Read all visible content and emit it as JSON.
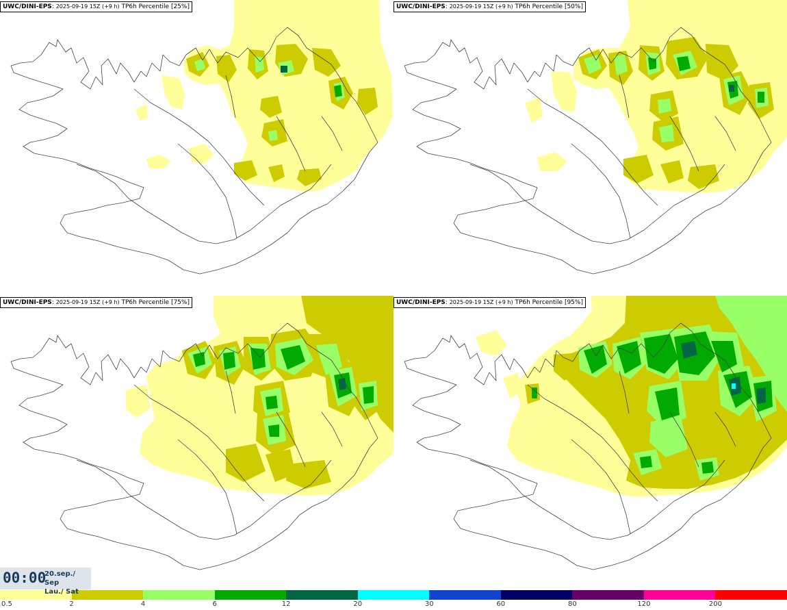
{
  "panels": [
    {
      "model": "UWC/DINI-EPS",
      "run": "2025-09-19 15Z (+9 h)",
      "field": "TP6h Percentile [25%]",
      "percentile": 25
    },
    {
      "model": "UWC/DINI-EPS",
      "run": "2025-09-19 15Z (+9 h)",
      "field": "TP6h Percentile [50%]",
      "percentile": 50
    },
    {
      "model": "UWC/DINI-EPS",
      "run": "2025-09-19 15Z (+9 h)",
      "field": "TP6h Percentile [75%]",
      "percentile": 75
    },
    {
      "model": "UWC/DINI-EPS",
      "run": "2025-09-19 15Z (+9 h)",
      "field": "TP6h Percentile [95%]",
      "percentile": 95
    }
  ],
  "valid_time": {
    "time": "00:00",
    "date": "20.sep./ Sep",
    "weekday": "Lau./ Sat"
  },
  "colorbar": {
    "ticks": [
      "0.5",
      "2",
      "4",
      "6",
      "12",
      "20",
      "30",
      "60",
      "80",
      "120",
      "200"
    ],
    "colors": [
      "#ffff99",
      "#cccc00",
      "#99ff66",
      "#00aa00",
      "#006644",
      "#00ffff",
      "#1144cc",
      "#000066",
      "#660066",
      "#ff0099",
      "#ff0000"
    ]
  }
}
